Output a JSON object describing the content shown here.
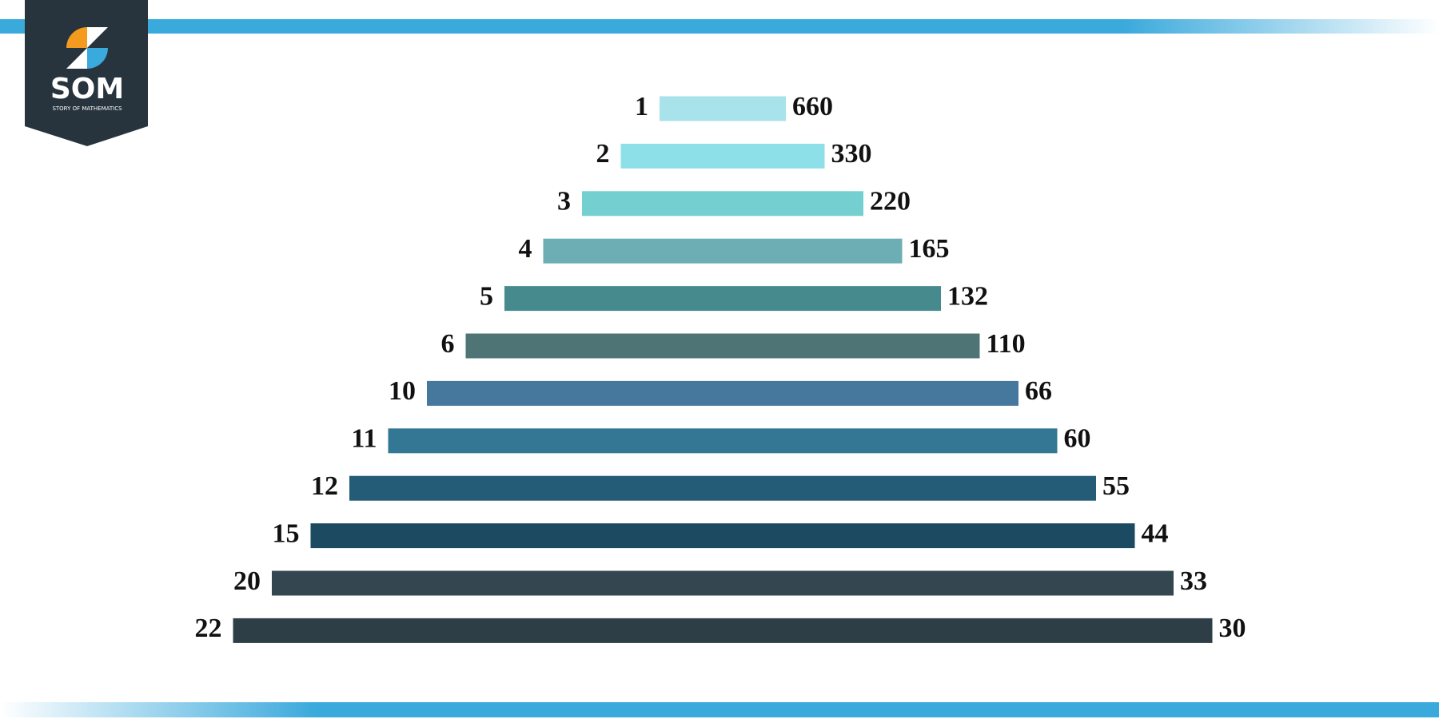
{
  "logo": {
    "mark": "SOM",
    "tagline": "STORY OF MATHEMATICS"
  },
  "pairs": [
    {
      "left": "1",
      "right": "660"
    },
    {
      "left": "2",
      "right": "330"
    },
    {
      "left": "3",
      "right": "220"
    },
    {
      "left": "4",
      "right": "165"
    },
    {
      "left": "5",
      "right": "132"
    },
    {
      "left": "6",
      "right": "110"
    },
    {
      "left": "10",
      "right": "66"
    },
    {
      "left": "11",
      "right": "60"
    },
    {
      "left": "12",
      "right": "55"
    },
    {
      "left": "15",
      "right": "44"
    },
    {
      "left": "20",
      "right": "33"
    },
    {
      "left": "22",
      "right": "30"
    }
  ]
}
